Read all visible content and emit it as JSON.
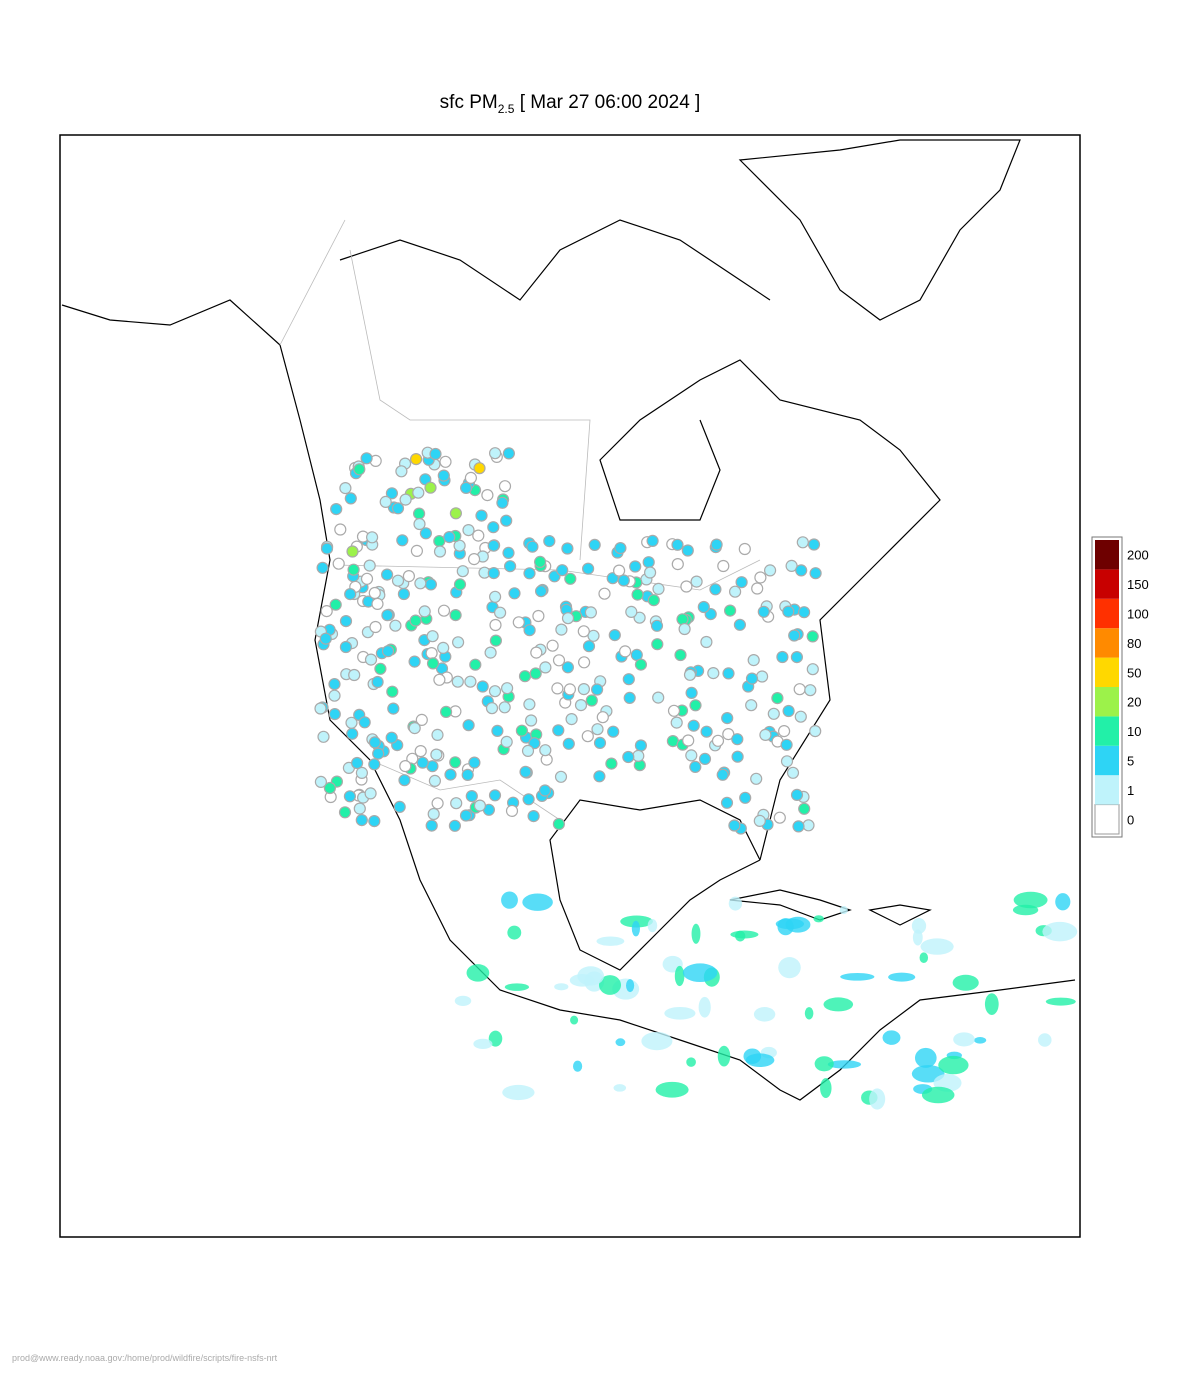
{
  "title": {
    "prefix": "sfc PM",
    "subscript": "2.5",
    "suffix": " [ Mar 27 06:00 2024 ]"
  },
  "legend": {
    "levels": [
      0,
      1,
      5,
      10,
      20,
      50,
      80,
      100,
      150,
      200
    ],
    "colors": [
      "#ffffff",
      "#bff3fb",
      "#2ed4f5",
      "#22f0a8",
      "#9cf24a",
      "#ffd800",
      "#ff8a00",
      "#ff3000",
      "#c80000",
      "#6e0000"
    ]
  },
  "footer": "prod@www.ready.noaa.gov:/home/prod/wildfire/scripts/fire-nsfs-nrt"
}
